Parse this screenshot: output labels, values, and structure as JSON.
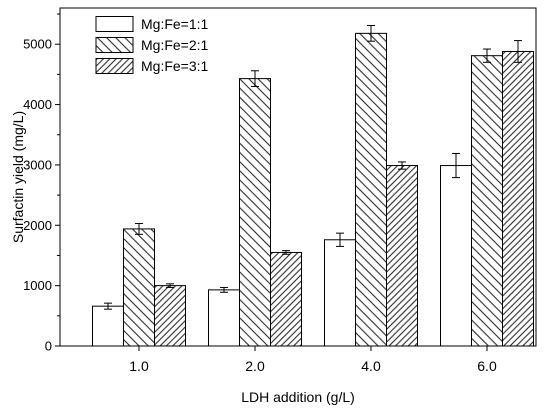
{
  "chart_data": {
    "type": "bar",
    "categories": [
      "1.0",
      "2.0",
      "4.0",
      "6.0"
    ],
    "series": [
      {
        "name": "Mg:Fe=1:1",
        "values": [
          660,
          930,
          1760,
          2990
        ],
        "errors": [
          50,
          40,
          110,
          200
        ],
        "fill": "#ffffff"
      },
      {
        "name": "Mg:Fe=2:1",
        "values": [
          1940,
          4430,
          5180,
          4810
        ],
        "errors": [
          90,
          130,
          130,
          110
        ],
        "fill": "#ffffff"
      },
      {
        "name": "Mg:Fe=3:1",
        "values": [
          1000,
          1550,
          2990,
          4880
        ],
        "errors": [
          30,
          30,
          60,
          180
        ],
        "fill": "#ffffff"
      }
    ],
    "xlabel": "LDH addition (g/L)",
    "ylabel": "Surfactin yield (mg/L)",
    "ylim": [
      0,
      5600
    ],
    "ytick_labels": [
      "0",
      "1000",
      "2000",
      "3000",
      "4000",
      "5000"
    ],
    "grid": false,
    "legend": "top-left",
    "colors": {
      "background": "#ffffff",
      "axis": "#000000",
      "bar_stroke": "#000000",
      "hatch": "#000000"
    }
  }
}
